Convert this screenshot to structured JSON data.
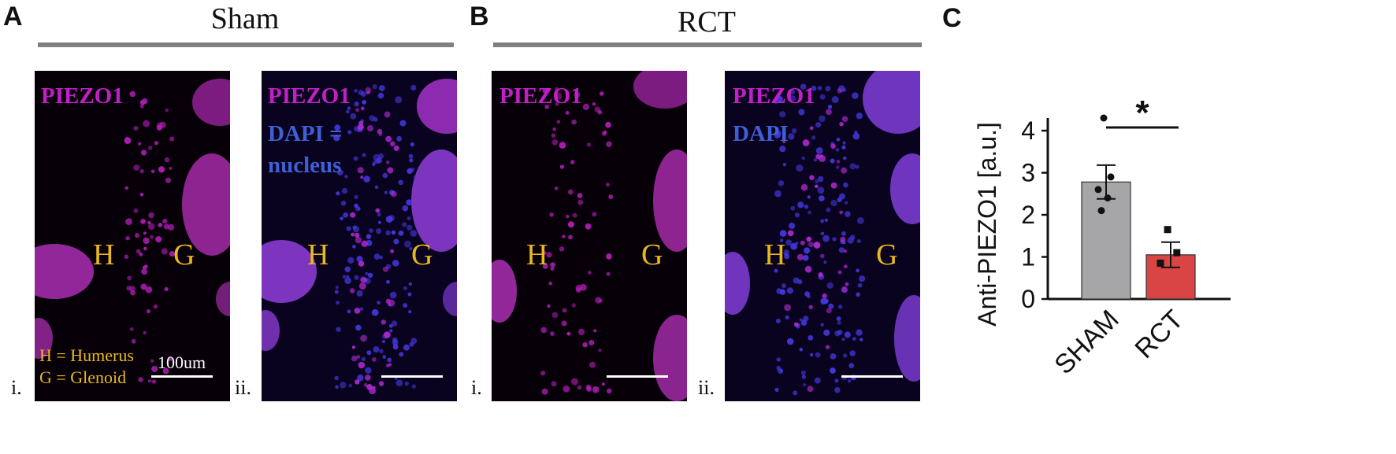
{
  "panels": {
    "A": {
      "letter": "A",
      "title": "Sham"
    },
    "B": {
      "letter": "B",
      "title": "RCT"
    },
    "C": {
      "letter": "C"
    }
  },
  "images": [
    {
      "roman": "i.",
      "stain_lines": [
        "PIEZO1"
      ],
      "dapi_lines": [],
      "h": "H",
      "g": "G",
      "scale": "100um",
      "legend": [
        "H = Humerus",
        "G = Glenoid"
      ]
    },
    {
      "roman": "ii.",
      "stain_lines": [
        "PIEZO1"
      ],
      "dapi_lines": [
        "DAPI =",
        "nucleus"
      ],
      "h": "H",
      "g": "G"
    },
    {
      "roman": "i.",
      "stain_lines": [
        "PIEZO1"
      ],
      "dapi_lines": [],
      "h": "H",
      "g": "G"
    },
    {
      "roman": "ii.",
      "stain_lines": [
        "PIEZO1"
      ],
      "dapi_lines": [
        "DAPI"
      ],
      "h": "H",
      "g": "G"
    }
  ],
  "colors": {
    "piezo": "#c21fc8",
    "dapi": "#3f5fd6",
    "hg_label": "#e8b820",
    "sham_bar": "#a6a6a8",
    "rct_bar": "#d94545"
  },
  "chart_data": {
    "type": "bar",
    "categories": [
      "SHAM",
      "RCT"
    ],
    "values": [
      2.78,
      1.05
    ],
    "errors": [
      0.4,
      0.3
    ],
    "points": [
      [
        4.3,
        2.9,
        2.6,
        2.4,
        2.1
      ],
      [
        1.65,
        1.1,
        0.85
      ]
    ],
    "point_markers": [
      "circle",
      "square"
    ],
    "ylabel": "Anti-PIEZO1 [a.u.]",
    "yticks": [
      0,
      1,
      2,
      3,
      4
    ],
    "ylim": [
      0,
      4.3
    ],
    "significance": "*"
  }
}
